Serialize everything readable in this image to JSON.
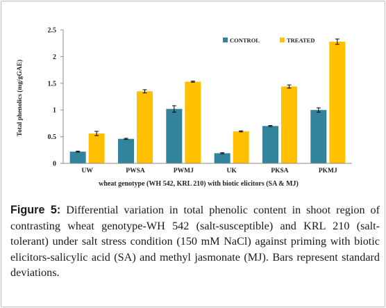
{
  "chart_data": {
    "type": "bar",
    "categories": [
      "UW",
      "PWSA",
      "PWMJ",
      "UK",
      "PKSA",
      "PKMJ"
    ],
    "series": [
      {
        "name": "CONTROL",
        "color": "#31849b",
        "values": [
          0.22,
          0.46,
          1.02,
          0.19,
          0.7,
          1.0
        ],
        "errors": [
          0.01,
          0.01,
          0.06,
          0.01,
          0.01,
          0.04
        ]
      },
      {
        "name": "TREATED",
        "color": "#ffc000",
        "values": [
          0.56,
          1.35,
          1.53,
          0.6,
          1.44,
          2.28
        ],
        "errors": [
          0.04,
          0.03,
          0.01,
          0.01,
          0.03,
          0.05
        ]
      }
    ],
    "ylim": [
      0,
      2.5
    ],
    "yticks": [
      "0",
      "0.5",
      "1",
      "1.5",
      "2",
      "2.5"
    ],
    "ylabel": "Total phenolics (mg/gGAE)",
    "xlabel": "wheat genotype (WH 542, KRL 210) with biotic elicitors (SA & MJ)",
    "legend_position": "top-right",
    "grid": false
  },
  "caption": {
    "label": "Figure 5:",
    "text": " Differential variation in total phenolic content in shoot region of contrasting wheat genotype-WH 542 (salt-susceptible) and KRL 210 (salt-tolerant) under salt stress condition (150 mM NaCl) against priming with biotic elicitors-salicylic acid (SA) and methyl jasmonate (MJ). Bars represent standard deviations."
  }
}
